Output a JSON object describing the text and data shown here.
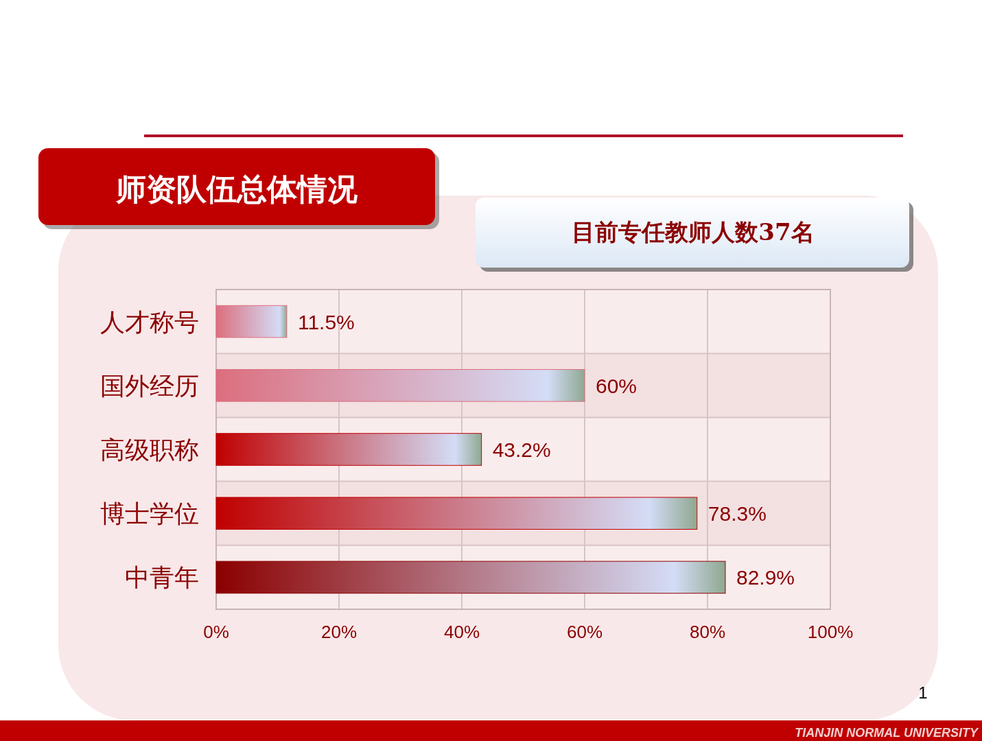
{
  "chart_data": {
    "type": "bar",
    "orientation": "horizontal",
    "title": "师资队伍总体情况",
    "subtitle": "目前专任教师人数37名",
    "categories": [
      "人才称号",
      "国外经历",
      "高级职称",
      "博士学位",
      "中青年"
    ],
    "values": [
      11.5,
      60,
      43.2,
      78.3,
      82.9
    ],
    "value_labels": [
      "11.5%",
      "60%",
      "43.2%",
      "78.3%",
      "82.9%"
    ],
    "colors": [
      "#dc6e7e",
      "#dc6e7e",
      "#c00000",
      "#c00000",
      "#8b0000"
    ],
    "xlim": [
      0,
      100
    ],
    "xticks": [
      {
        "value": 0,
        "label": "0%"
      },
      {
        "value": 20,
        "label": "20%"
      },
      {
        "value": 40,
        "label": "40%"
      },
      {
        "value": 60,
        "label": "60%"
      },
      {
        "value": 80,
        "label": "80%"
      },
      {
        "value": 100,
        "label": "100%"
      }
    ],
    "grid": true,
    "annotations": [
      "1",
      "TIANJIN NORMAL UNIVERSITY"
    ]
  }
}
